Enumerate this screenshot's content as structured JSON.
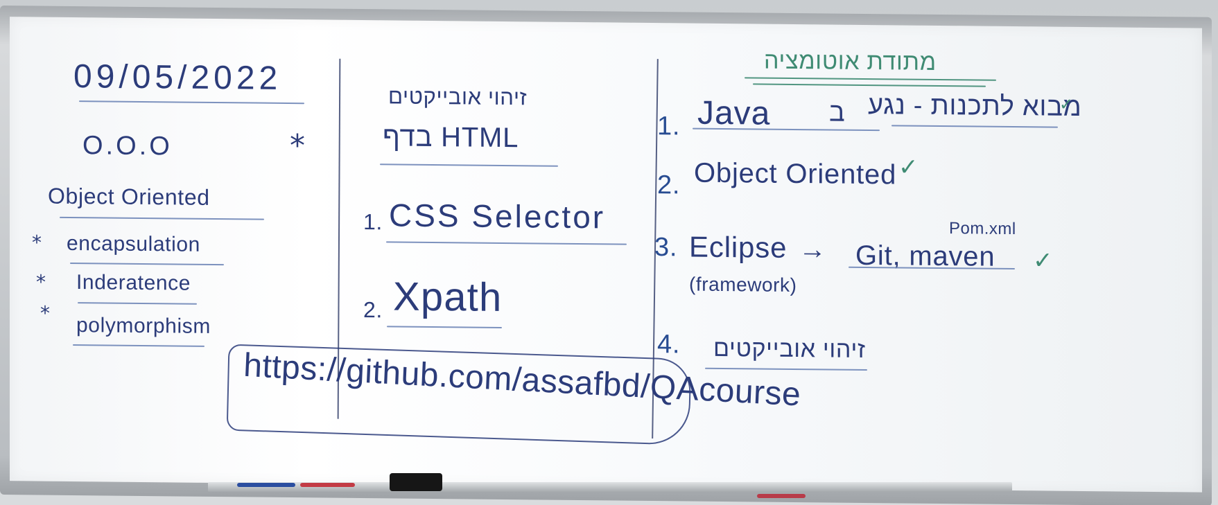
{
  "board": {
    "left_column": {
      "date": "09/05/2022",
      "ooo": "O.O.O",
      "star": "*",
      "object_oriented": "Object Oriented",
      "items": [
        {
          "bullet": "*",
          "text": "encapsulation"
        },
        {
          "bullet": "*",
          "text": "Inderatence"
        },
        {
          "bullet": "*",
          "text": "polymorphism"
        }
      ]
    },
    "middle_column": {
      "heading_line1": "זיהוי אובייקטים",
      "heading_line2": "HTML בדף",
      "items": [
        {
          "number": "1.",
          "text": "CSS Selector"
        },
        {
          "number": "2.",
          "text": "Xpath"
        }
      ],
      "url": "https://github.com/assafbd/QAcourse"
    },
    "right_column": {
      "title": "מתודת אוטומציה",
      "items": [
        {
          "number": "1.",
          "text": "Java",
          "suffix": "ב",
          "hebrew": "מבוא לתכנות - נגע",
          "check": "✓"
        },
        {
          "number": "2.",
          "text": "Object Oriented",
          "check": "✓"
        },
        {
          "number": "3.",
          "text": "Eclipse",
          "arrow": "→",
          "target": "Git, maven",
          "note": "Pom.xml",
          "subtext": "(framework)",
          "check": "✓"
        },
        {
          "number": "4.",
          "text": "זיהוי אובייקטים"
        }
      ]
    }
  },
  "colors": {
    "ink_blue": "#2c3c7a",
    "ink_green": "#3f8b73",
    "board_white": "#ffffff",
    "frame_gray": "#b9bdc1"
  }
}
